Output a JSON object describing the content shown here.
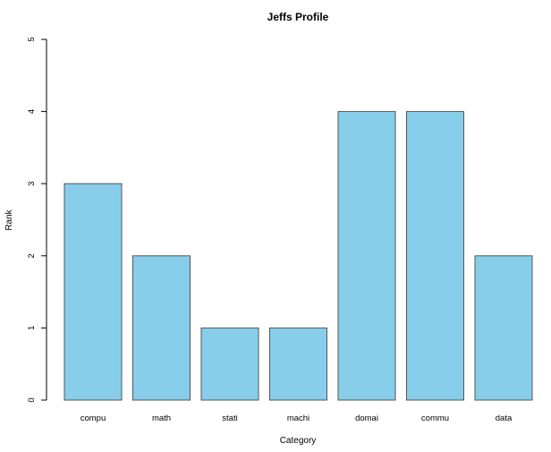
{
  "chart_data": {
    "type": "bar",
    "title": "Jeffs Profile",
    "xlabel": "Category",
    "ylabel": "Rank",
    "categories": [
      "compu",
      "math",
      "stati",
      "machi",
      "domai",
      "commu",
      "data"
    ],
    "values": [
      3,
      2,
      1,
      1,
      4,
      4,
      2
    ],
    "ylim": [
      0,
      5
    ],
    "yticks": [
      0,
      1,
      2,
      3,
      4,
      5
    ],
    "bar_color": "#87CEEB",
    "bar_border_color": "#555555",
    "grid": false,
    "legend": "none"
  }
}
